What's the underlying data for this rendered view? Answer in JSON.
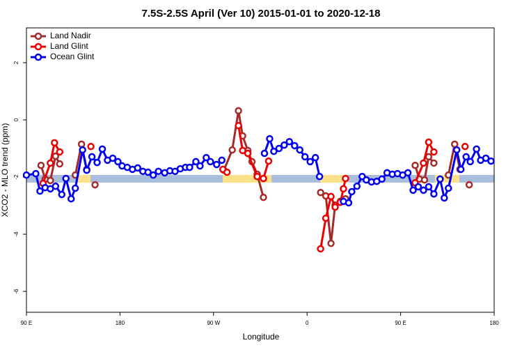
{
  "chart_data": {
    "type": "line",
    "title": "7.5S-2.5S April (Ver 10)   2015-01-01 to 2020-12-18",
    "xlabel": "Longitude",
    "ylabel": "XCO2 - MLO trend (ppm)",
    "xlim": [
      90,
      540
    ],
    "ylim": [
      -6.73,
      3.22
    ],
    "xticks": [
      {
        "value": 90,
        "label": "90 E"
      },
      180,
      {
        "value": 270,
        "label": "90 W"
      },
      {
        "value": 360,
        "label": "0"
      },
      {
        "value": 450,
        "label": "90 E"
      },
      {
        "value": 540,
        "label": "180"
      }
    ],
    "yticks": [
      -6,
      -4,
      -2,
      0,
      2
    ],
    "legend": "top-left",
    "series": [
      {
        "name": "Land Nadir",
        "color": "#a52a2a",
        "x": [
          104,
          108,
          113,
          118,
          122,
          null,
          137,
          143,
          148,
          null,
          156,
          null,
          280,
          288,
          294,
          298,
          303,
          307,
          312,
          318,
          null,
          373,
          378,
          383,
          387,
          392,
          397,
          null,
          464,
          468,
          473,
          477,
          482,
          null,
          496,
          502,
          507,
          null,
          516
        ],
        "values": [
          -1.59,
          -2.07,
          -2.12,
          -1.27,
          -1.54,
          null,
          -1.93,
          -0.85,
          -1.73,
          null,
          -2.27,
          null,
          -1.76,
          -1.05,
          0.32,
          -0.56,
          -1.07,
          -1.46,
          -1.9,
          -2.71,
          null,
          -2.54,
          -2.66,
          -4.32,
          -2.98,
          -2.85,
          -2.76,
          null,
          -1.59,
          -2.07,
          -2.1,
          -1.29,
          -1.51,
          null,
          -1.93,
          -0.85,
          -1.73,
          null,
          -2.27
        ]
      },
      {
        "name": "Land Glint",
        "color": "#ee0000",
        "x": [
          106,
          113,
          117,
          122,
          null,
          152,
          null,
          279,
          283,
          null,
          294,
          298,
          303,
          312,
          318,
          323,
          null,
          373,
          378,
          383,
          387,
          392,
          395,
          397,
          null,
          464,
          472,
          477,
          482,
          null,
          512
        ],
        "values": [
          -2.22,
          -1.51,
          -0.8,
          -1.12,
          null,
          -0.93,
          null,
          -1.73,
          -1.83,
          null,
          -0.2,
          -1.07,
          -1.17,
          -1.98,
          -2.05,
          -1.44,
          null,
          -4.51,
          -3.44,
          -2.68,
          -3.05,
          -2.88,
          -2.41,
          -2.05,
          null,
          -2.2,
          -1.51,
          -0.78,
          -1.12,
          null,
          -0.93
        ]
      },
      {
        "name": "Ocean Glint",
        "color": "#0000ee",
        "x": [
          90,
          99,
          103,
          108,
          113,
          118,
          124,
          128,
          133,
          137,
          144,
          148,
          153,
          158,
          163,
          168,
          173,
          178,
          182,
          187,
          192,
          197,
          202,
          207,
          212,
          217,
          223,
          228,
          233,
          238,
          243,
          247,
          253,
          257,
          263,
          267,
          273,
          278,
          null,
          319,
          324,
          328,
          333,
          338,
          343,
          348,
          353,
          358,
          363,
          368,
          372,
          null,
          395,
          400,
          403,
          408,
          413,
          417,
          422,
          427,
          432,
          437,
          442,
          447,
          452,
          457,
          462,
          467,
          472,
          477,
          482,
          488,
          492,
          496,
          504,
          508,
          513,
          517,
          523,
          527,
          532,
          537
        ],
        "values": [
          -1.93,
          -1.88,
          -2.49,
          -2.37,
          -2.41,
          -2.32,
          -2.61,
          -2.05,
          -2.76,
          -2.39,
          -1.05,
          -1.76,
          -1.29,
          -1.49,
          -1.02,
          -1.41,
          -1.34,
          -1.46,
          -1.61,
          -1.66,
          -1.73,
          -1.68,
          -1.8,
          -1.83,
          -1.93,
          -1.8,
          -1.85,
          -1.78,
          -1.8,
          -1.71,
          -1.66,
          -1.66,
          -1.46,
          -1.61,
          -1.32,
          -1.46,
          -1.56,
          -1.41,
          null,
          -1.17,
          -0.66,
          -1.1,
          -1.0,
          -0.88,
          -0.76,
          -0.9,
          -1.05,
          -1.29,
          -1.46,
          -1.32,
          -1.98,
          null,
          -2.85,
          -2.9,
          -2.51,
          -2.32,
          -1.98,
          -2.1,
          -2.17,
          -2.15,
          -2.07,
          -1.85,
          -1.9,
          -1.88,
          -1.93,
          -1.85,
          -2.46,
          -2.34,
          -2.46,
          -2.34,
          -2.59,
          -2.07,
          -2.73,
          -2.39,
          -1.05,
          -1.73,
          -1.29,
          -1.46,
          -1.02,
          -1.41,
          -1.34,
          -1.44
        ]
      }
    ]
  }
}
